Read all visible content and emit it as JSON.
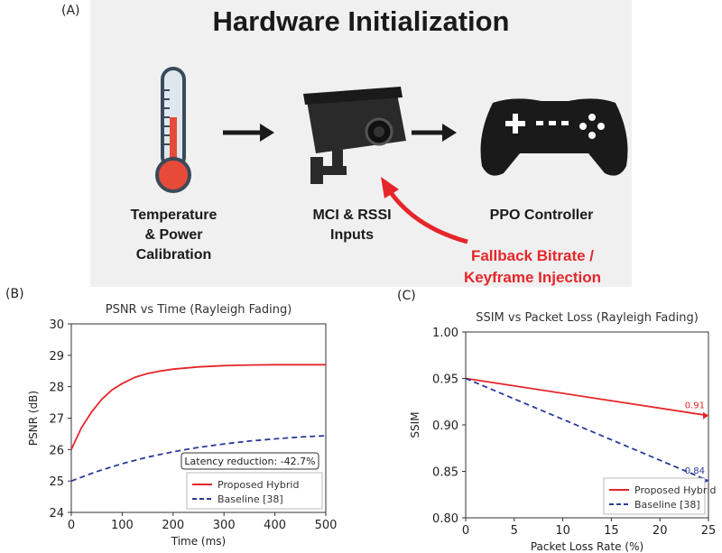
{
  "top": {
    "panel_label": "(A)",
    "title": "Hardware Initialization",
    "node1": [
      "Temperature",
      "& Power Calibration"
    ],
    "node2": [
      "MCI & RSSI",
      "Inputs"
    ],
    "node3": [
      "PPO Controller"
    ],
    "feedback": [
      "Fallback Bitrate /",
      "Keyframe Injection"
    ],
    "icons": [
      "thermometer-icon",
      "camera-icon",
      "gamepad-icon"
    ],
    "colors": {
      "feedback": "#e5262a",
      "arrow": "#1a1a1a"
    }
  },
  "chart_data": [
    {
      "panel_label": "(B)",
      "type": "line",
      "title": "PSNR vs Time (Rayleigh Fading)",
      "xlabel": "Time (ms)",
      "ylabel": "PSNR (dB)",
      "xlim": [
        0,
        500
      ],
      "ylim": [
        24,
        30
      ],
      "xticks": [
        0,
        100,
        200,
        300,
        400,
        500
      ],
      "yticks": [
        24,
        25,
        26,
        27,
        28,
        29,
        30
      ],
      "grid": false,
      "legend_position": "lower-right",
      "annotation": "Latency reduction: -42.7%",
      "series": [
        {
          "name": "Proposed Hybrid",
          "color": "#e5262a",
          "style": "solid",
          "x": [
            0,
            20,
            40,
            60,
            80,
            100,
            125,
            150,
            175,
            200,
            250,
            300,
            350,
            400,
            450,
            500
          ],
          "y": [
            26.0,
            26.7,
            27.2,
            27.6,
            27.9,
            28.1,
            28.3,
            28.42,
            28.5,
            28.56,
            28.63,
            28.67,
            28.69,
            28.7,
            28.7,
            28.7
          ]
        },
        {
          "name": "Baseline [38]",
          "color": "#2a3b9a",
          "style": "dashed",
          "x": [
            0,
            50,
            100,
            150,
            200,
            250,
            300,
            350,
            400,
            450,
            500
          ],
          "y": [
            25.0,
            25.3,
            25.55,
            25.76,
            25.93,
            26.07,
            26.18,
            26.27,
            26.34,
            26.4,
            26.44
          ]
        }
      ]
    },
    {
      "panel_label": "(C)",
      "type": "line",
      "title": "SSIM vs Packet Loss (Rayleigh Fading)",
      "xlabel": "Packet Loss Rate (%)",
      "ylabel": "SSIM",
      "xlim": [
        0,
        25
      ],
      "ylim": [
        0.8,
        1.0
      ],
      "xticks": [
        0,
        5,
        10,
        15,
        20,
        25
      ],
      "yticks": [
        0.8,
        0.85,
        0.9,
        0.95,
        1.0
      ],
      "ytick_labels": [
        "0.80",
        "0.85",
        "0.90",
        "0.95",
        "1.00"
      ],
      "grid": false,
      "legend_position": "lower-right",
      "series": [
        {
          "name": "Proposed Hybrid",
          "color": "#e5262a",
          "style": "solid",
          "x": [
            0,
            25
          ],
          "y": [
            0.95,
            0.91
          ],
          "end_label": "0.91"
        },
        {
          "name": "Baseline [38]",
          "color": "#2a3b9a",
          "style": "dashed",
          "x": [
            0,
            25
          ],
          "y": [
            0.95,
            0.84
          ],
          "end_label": "0.84"
        }
      ]
    }
  ]
}
